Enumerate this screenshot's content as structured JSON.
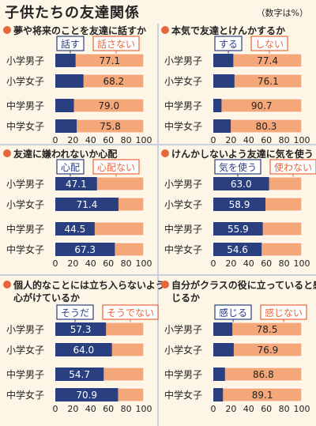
{
  "title": "子供たちの友達関係",
  "note": "（数字は%）",
  "chart_data": [
    {
      "type": "bar",
      "title": "夢や将来のことを友達に話すか",
      "legend": [
        "話す",
        "話さない"
      ],
      "categories": [
        "小学男子",
        "小学女子",
        "中学男子",
        "中学女子"
      ],
      "series": [
        {
          "name": "話さない",
          "values": [
            77.1,
            68.2,
            79.0,
            75.8
          ]
        }
      ],
      "xlim": [
        0,
        100
      ],
      "ticks": [
        0,
        20,
        40,
        60,
        80,
        100
      ],
      "label_side": "orange"
    },
    {
      "type": "bar",
      "title": "本気で友達とけんかするか",
      "legend": [
        "する",
        "しない"
      ],
      "categories": [
        "小学男子",
        "小学女子",
        "中学男子",
        "中学女子"
      ],
      "series": [
        {
          "name": "しない",
          "values": [
            77.4,
            76.1,
            90.7,
            80.3
          ]
        }
      ],
      "xlim": [
        0,
        100
      ],
      "ticks": [
        0,
        20,
        40,
        60,
        80,
        100
      ],
      "label_side": "orange"
    },
    {
      "type": "bar",
      "title": "友達に嫌われないか心配",
      "legend": [
        "心配",
        "心配ない"
      ],
      "categories": [
        "小学男子",
        "小学女子",
        "中学男子",
        "中学女子"
      ],
      "series": [
        {
          "name": "心配",
          "values": [
            47.1,
            71.4,
            44.5,
            67.3
          ]
        }
      ],
      "xlim": [
        0,
        100
      ],
      "ticks": [
        0,
        20,
        40,
        60,
        80,
        100
      ],
      "label_side": "blue"
    },
    {
      "type": "bar",
      "title": "けんかしないよう友達に気を使う",
      "legend": [
        "気を使う",
        "使わない"
      ],
      "categories": [
        "小学男子",
        "小学女子",
        "中学男子",
        "中学女子"
      ],
      "series": [
        {
          "name": "気を使う",
          "values": [
            63.0,
            58.9,
            55.9,
            54.6
          ]
        }
      ],
      "xlim": [
        0,
        100
      ],
      "ticks": [
        0,
        20,
        40,
        60,
        80,
        100
      ],
      "label_side": "blue"
    },
    {
      "type": "bar",
      "title": "個人的なことには立ち入らないよう心がけているか",
      "legend": [
        "そうだ",
        "そうでない"
      ],
      "categories": [
        "小学男子",
        "小学女子",
        "中学男子",
        "中学女子"
      ],
      "series": [
        {
          "name": "そうだ",
          "values": [
            57.3,
            64.0,
            54.7,
            70.9
          ]
        }
      ],
      "xlim": [
        0,
        100
      ],
      "ticks": [
        0,
        20,
        40,
        60,
        80,
        100
      ],
      "label_side": "blue"
    },
    {
      "type": "bar",
      "title": "自分がクラスの役に立っていると感じるか",
      "legend": [
        "感じる",
        "感じない"
      ],
      "categories": [
        "小学男子",
        "小学女子",
        "中学男子",
        "中学女子"
      ],
      "series": [
        {
          "name": "感じない",
          "values": [
            78.5,
            76.9,
            86.8,
            89.1
          ]
        }
      ],
      "xlim": [
        0,
        100
      ],
      "ticks": [
        0,
        20,
        40,
        60,
        80,
        100
      ],
      "label_side": "orange"
    }
  ],
  "colors": {
    "blue": "#2a3f80",
    "orange": "#f4a87a",
    "bullet": "#e8663c",
    "track_border": "#ffffff",
    "legend_fill": "#ffffff",
    "divider": "#c9d3de"
  }
}
